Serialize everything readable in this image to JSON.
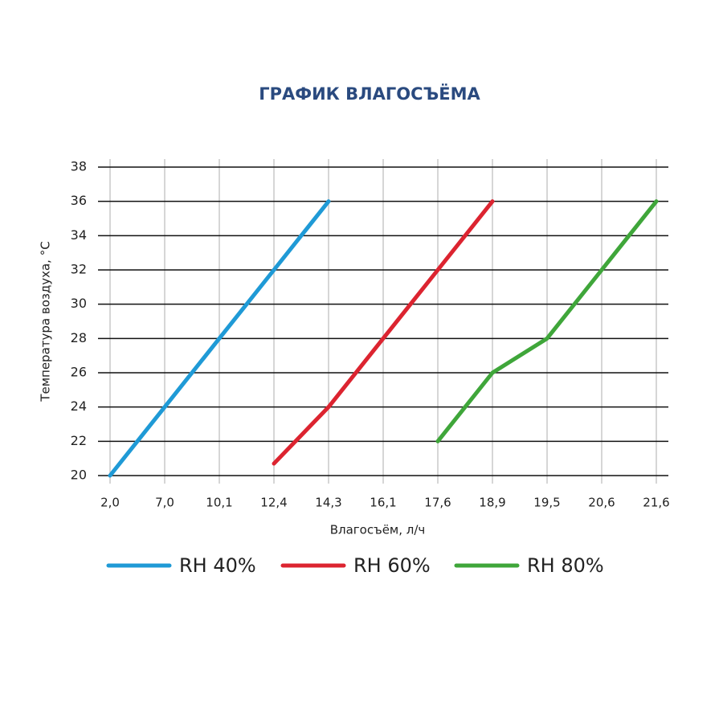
{
  "chart_data": {
    "type": "line",
    "title": "ГРАФИК ВЛАГОСЪЁМА",
    "x_label": "Влагосъём, л/ч",
    "y_label": "Температура воздуха, °C",
    "categories": [
      "2,0",
      "7,0",
      "10,1",
      "12,4",
      "14,3",
      "16,1",
      "17,6",
      "18,9",
      "19,5",
      "20,6",
      "21,6"
    ],
    "series": [
      {
        "name": "RH 40%",
        "color": "#1f9ad6",
        "values": [
          20,
          24,
          28,
          32,
          36,
          null,
          null,
          null,
          null,
          null,
          null
        ]
      },
      {
        "name": "RH 60%",
        "color": "#dc2430",
        "values": [
          null,
          null,
          null,
          20.7,
          24,
          28,
          32,
          36,
          null,
          null,
          null
        ]
      },
      {
        "name": "RH 80%",
        "color": "#3fa63a",
        "values": [
          null,
          null,
          null,
          null,
          null,
          null,
          22,
          26,
          28,
          32,
          36
        ]
      }
    ],
    "ylim": [
      20,
      38
    ],
    "yticks": [
      20,
      22,
      24,
      26,
      28,
      30,
      32,
      34,
      36,
      38
    ],
    "grid": true
  }
}
